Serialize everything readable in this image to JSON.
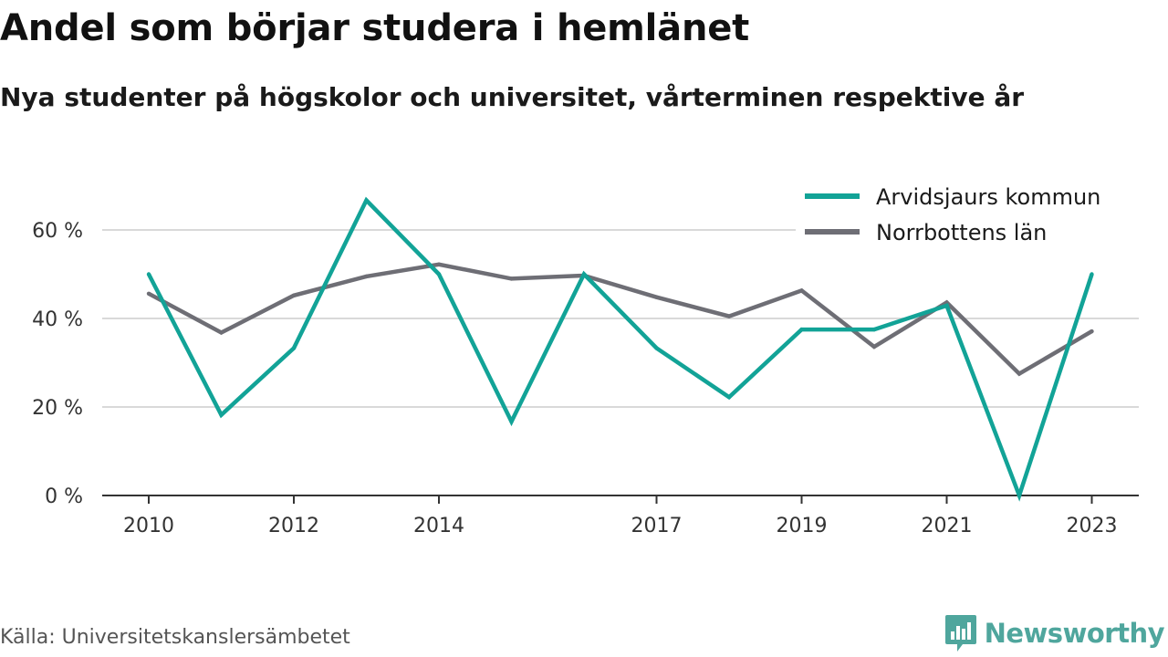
{
  "header": {
    "title": "Andel som börjar studera i hemlänet",
    "subtitle": "Nya studenter på högskolor och universitet, vårterminen respektive år"
  },
  "footer": {
    "source": "Källa: Universitetskanslersämbetet",
    "brand": "Newsworthy",
    "brand_icon": "newsworthy-logo-icon"
  },
  "colors": {
    "arvidsjaur": "#12a397",
    "norrbotten": "#6e6e75",
    "grid": "#d9d9d9",
    "axis": "#333333",
    "brand": "#4fa69d"
  },
  "chart_data": {
    "type": "line",
    "x": [
      2010,
      2011,
      2012,
      2013,
      2014,
      2015,
      2016,
      2017,
      2018,
      2019,
      2020,
      2021,
      2022,
      2023
    ],
    "x_tick_labels": [
      "2010",
      "2012",
      "2014",
      "2017",
      "2019",
      "2021",
      "2023"
    ],
    "y_tick_labels": [
      "0 %",
      "20 %",
      "40 %",
      "60 %"
    ],
    "ylim": [
      0,
      60
    ],
    "grid": true,
    "legend_position": "top-right",
    "series": [
      {
        "name": "Arvidsjaurs kommun",
        "color": "#12a397",
        "values": [
          50.0,
          18.2,
          33.3,
          66.7,
          50.0,
          16.7,
          50.0,
          33.3,
          22.2,
          37.5,
          37.5,
          42.9,
          0.0,
          50.0
        ]
      },
      {
        "name": "Norrbottens län",
        "color": "#6e6e75",
        "values": [
          45.6,
          36.8,
          45.2,
          49.5,
          52.2,
          49.0,
          49.7,
          44.8,
          40.5,
          46.3,
          33.6,
          43.6,
          27.5,
          37.1
        ]
      }
    ]
  }
}
